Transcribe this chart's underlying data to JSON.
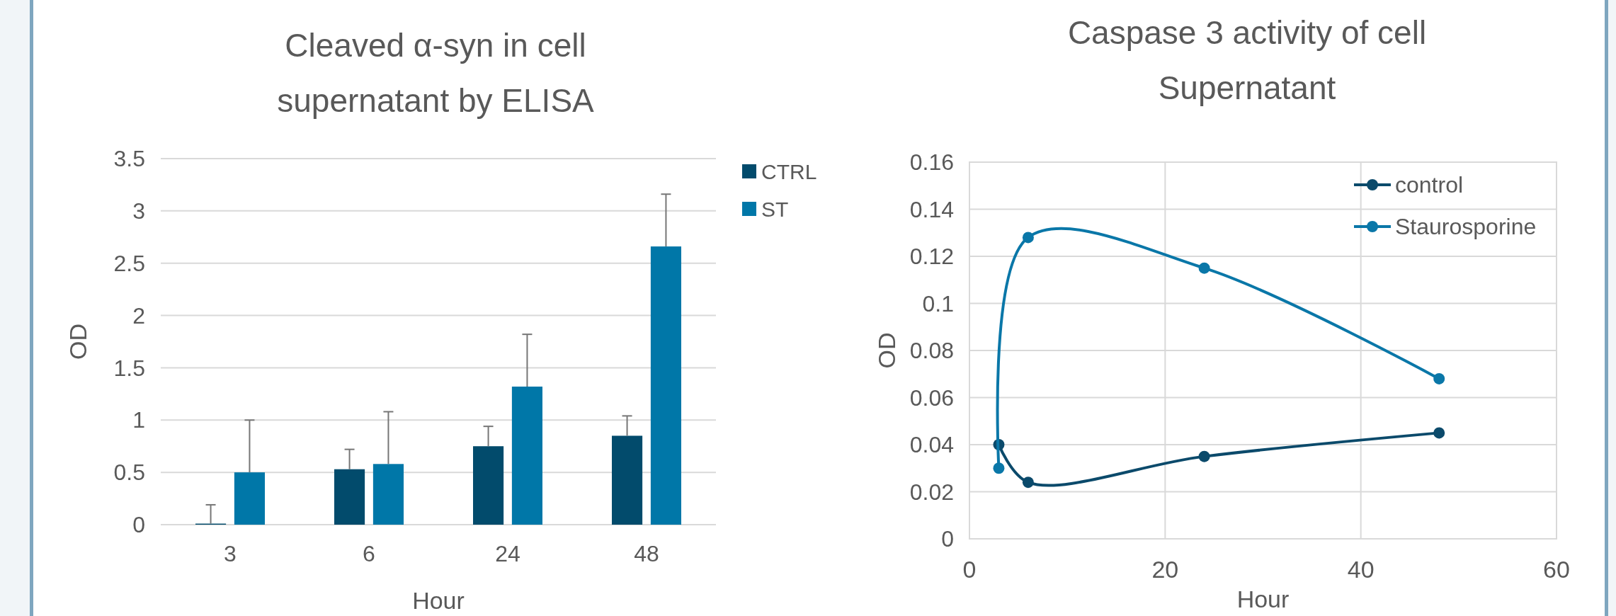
{
  "chart_data": [
    {
      "type": "bar",
      "title": "Cleaved α-syn in cell supernatant by ELISA",
      "xlabel": "Hour",
      "ylabel": "OD",
      "categories": [
        "3",
        "6",
        "24",
        "48"
      ],
      "series": [
        {
          "name": "CTRL",
          "color": "#024b6c",
          "values": [
            0.01,
            0.53,
            0.75,
            0.85
          ],
          "errors": [
            [
              0.01,
              0.19
            ],
            [
              0.53,
              0.72
            ],
            [
              0.75,
              0.94
            ],
            [
              0.85,
              1.04
            ]
          ]
        },
        {
          "name": "ST",
          "color": "#0077a8",
          "values": [
            0.5,
            0.58,
            1.32,
            2.66
          ],
          "errors": [
            [
              0.5,
              1.0
            ],
            [
              0.58,
              1.08
            ],
            [
              1.32,
              1.82
            ],
            [
              2.66,
              3.16
            ]
          ]
        }
      ],
      "ylim": [
        0,
        3.5
      ],
      "yticks": [
        0,
        0.5,
        1,
        1.5,
        2,
        2.5,
        3,
        3.5
      ],
      "grid": "y",
      "legend": "right"
    },
    {
      "type": "line",
      "title": "Caspase 3 activity of cell Supernatant",
      "xlabel": "Hour",
      "ylabel": "OD",
      "series": [
        {
          "name": "control",
          "color": "#0b4a6b",
          "x": [
            3,
            6,
            24,
            48
          ],
          "values": [
            0.04,
            0.024,
            0.035,
            0.045
          ]
        },
        {
          "name": "Staurosporine",
          "color": "#0a77a8",
          "x": [
            3,
            6,
            24,
            48
          ],
          "values": [
            0.03,
            0.128,
            0.115,
            0.068
          ]
        }
      ],
      "xlim": [
        0,
        60
      ],
      "xticks": [
        0,
        20,
        40,
        60
      ],
      "ylim": [
        0,
        0.16
      ],
      "yticks": [
        0,
        0.02,
        0.04,
        0.06,
        0.08,
        0.1,
        0.12,
        0.14,
        0.16
      ],
      "grid": true,
      "legend": "top right",
      "marker": "circle",
      "line_style": "solid"
    }
  ]
}
